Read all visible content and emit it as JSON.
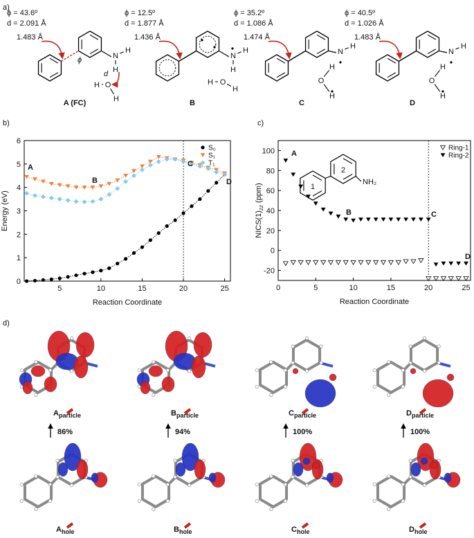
{
  "panel_a": {
    "label": "a)",
    "molecules": [
      {
        "phi": "ϕ = 43.6º",
        "d": "d = 2.091 Å",
        "bond": "1.483 Å",
        "name": "A (FC)",
        "atoms": [
          "N",
          "H",
          "H",
          "H",
          "O",
          "H"
        ],
        "annotations": [
          "ϕ",
          "d"
        ]
      },
      {
        "phi": "ϕ = 12.5º",
        "d": "d = 1.877 Å",
        "bond": "1.436 Å",
        "name": "B",
        "atoms": [
          "N",
          "H",
          "H",
          "H",
          "O",
          "H"
        ],
        "annotations": []
      },
      {
        "phi": "ϕ = 35.2º",
        "d": "d = 1.086 Å",
        "bond": "1.474 Å",
        "name": "C",
        "atoms": [
          "N",
          "H",
          "H",
          "O",
          "H"
        ],
        "annotations": []
      },
      {
        "phi": "ϕ = 40.5º",
        "d": "d = 1.026 Å",
        "bond": "1.483 Å",
        "name": "D",
        "atoms": [
          "N",
          "H",
          "H",
          "O",
          "H"
        ],
        "annotations": []
      }
    ]
  },
  "chart_data": [
    {
      "type": "line",
      "panel_label": "b)",
      "xlabel": "Reaction Coordinate",
      "ylabel": "Energy (eV)",
      "x": [
        1,
        2,
        3,
        4,
        5,
        6,
        7,
        8,
        9,
        10,
        11,
        12,
        13,
        14,
        15,
        16,
        17,
        18,
        19,
        20,
        21,
        22,
        23,
        24,
        25
      ],
      "series": [
        {
          "name": "S₀",
          "color": "#000000",
          "marker": "circle",
          "values": [
            0.0,
            0.02,
            0.05,
            0.08,
            0.12,
            0.18,
            0.25,
            0.32,
            0.38,
            0.45,
            0.55,
            0.75,
            0.95,
            1.2,
            1.45,
            1.75,
            2.05,
            2.35,
            2.6,
            2.9,
            3.2,
            3.5,
            3.85,
            4.2,
            4.55
          ]
        },
        {
          "name": "S₁",
          "color": "#f0803a",
          "marker": "triangle-down",
          "values": [
            4.45,
            4.35,
            4.25,
            4.15,
            4.1,
            4.05,
            4.0,
            4.0,
            4.0,
            4.05,
            4.15,
            4.3,
            4.5,
            4.7,
            4.9,
            5.1,
            5.3,
            5.25,
            5.2,
            5.15,
            5.05,
            4.95,
            4.85,
            4.75,
            4.6
          ]
        },
        {
          "name": "T₁",
          "color": "#86c8ee",
          "marker": "diamond",
          "values": [
            3.75,
            3.65,
            3.6,
            3.55,
            3.5,
            3.45,
            3.4,
            3.38,
            3.4,
            3.5,
            3.7,
            3.95,
            4.25,
            4.5,
            4.75,
            4.95,
            5.1,
            5.2,
            5.2,
            5.1,
            5.0,
            4.9,
            4.8,
            4.65,
            4.55
          ]
        }
      ],
      "xlim": [
        0.7,
        25.7
      ],
      "xticks": [
        5,
        10,
        15,
        20,
        25
      ],
      "ylim": [
        0,
        6
      ],
      "yticks": [
        0,
        1,
        2,
        3,
        4,
        5,
        6
      ],
      "vline": 20,
      "legend": "upper right",
      "annotations": [
        "A",
        "B",
        "C",
        "D"
      ]
    },
    {
      "type": "scatter",
      "panel_label": "c)",
      "xlabel": "Reaction Coordinate",
      "ylabel": [
        "NICS(1)",
        "zz",
        " (ppm)"
      ],
      "x": [
        1,
        2,
        3,
        4,
        5,
        6,
        7,
        8,
        9,
        10,
        11,
        12,
        13,
        14,
        15,
        16,
        17,
        18,
        19,
        20,
        21,
        22,
        23,
        24,
        25
      ],
      "series": [
        {
          "name": "Ring-1",
          "color": "#000000",
          "marker": "triangle-down-open",
          "values": [
            -13,
            -12,
            -12,
            -12,
            -12,
            -12,
            -12,
            -12,
            -12,
            -12,
            -12,
            -12,
            -12,
            -12,
            -12,
            -12,
            -11,
            -11,
            -10,
            -28,
            -28,
            -28,
            -28,
            -28,
            -28
          ]
        },
        {
          "name": "Ring-2",
          "color": "#000000",
          "marker": "triangle-down",
          "values": [
            90,
            76,
            64,
            54,
            47,
            41,
            37,
            34,
            31,
            30,
            31,
            31,
            31,
            31,
            31,
            31,
            31,
            31,
            31,
            31,
            -14,
            -13,
            -13,
            -13,
            -13
          ]
        }
      ],
      "xlim": [
        0,
        25.6
      ],
      "xticks": [
        0,
        5,
        10,
        15,
        20,
        25
      ],
      "ylim": [
        -30,
        110
      ],
      "yticks": [
        -20,
        0,
        20,
        40,
        60,
        80,
        100
      ],
      "vline": 20,
      "legend": "upper right",
      "annotations": [
        "A",
        "B",
        "C",
        "D"
      ],
      "inset": [
        "1",
        "2",
        "NH₂"
      ]
    }
  ],
  "panel_d": {
    "label": "d)",
    "columns": [
      {
        "particle": [
          "A",
          "particle"
        ],
        "percent": "86%",
        "hole": [
          "A",
          "hole"
        ]
      },
      {
        "particle": [
          "B",
          "particle"
        ],
        "percent": "94%",
        "hole": [
          "B",
          "hole"
        ]
      },
      {
        "particle": [
          "C",
          "particle"
        ],
        "percent": "100%",
        "hole": [
          "C",
          "hole"
        ]
      },
      {
        "particle": [
          "D",
          "particle"
        ],
        "percent": "100%",
        "hole": [
          "D",
          "hole"
        ]
      }
    ]
  }
}
